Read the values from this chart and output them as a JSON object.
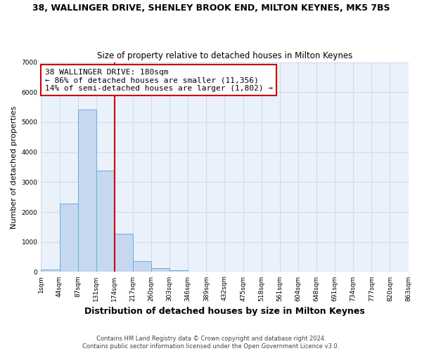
{
  "title1": "38, WALLINGER DRIVE, SHENLEY BROOK END, MILTON KEYNES, MK5 7BS",
  "title2": "Size of property relative to detached houses in Milton Keynes",
  "xlabel": "Distribution of detached houses by size in Milton Keynes",
  "ylabel": "Number of detached properties",
  "bin_edges": [
    "1sqm",
    "44sqm",
    "87sqm",
    "131sqm",
    "174sqm",
    "217sqm",
    "260sqm",
    "303sqm",
    "346sqm",
    "389sqm",
    "432sqm",
    "475sqm",
    "518sqm",
    "561sqm",
    "604sqm",
    "648sqm",
    "691sqm",
    "734sqm",
    "777sqm",
    "820sqm",
    "863sqm"
  ],
  "bar_values": [
    70,
    2280,
    5430,
    3380,
    1280,
    370,
    130,
    50,
    10,
    5,
    0,
    0,
    0,
    0,
    0,
    0,
    0,
    0,
    0,
    0
  ],
  "bar_color": "#c5d8f0",
  "bar_edgecolor": "#6baed6",
  "property_line_bin": 4,
  "ylim": [
    0,
    7000
  ],
  "yticks": [
    0,
    1000,
    2000,
    3000,
    4000,
    5000,
    6000,
    7000
  ],
  "annotation_text": "38 WALLINGER DRIVE: 180sqm\n← 86% of detached houses are smaller (11,356)\n14% of semi-detached houses are larger (1,802) →",
  "footnote": "Contains HM Land Registry data © Crown copyright and database right 2024.\nContains public sector information licensed under the Open Government Licence v3.0.",
  "grid_color": "#ccddf0",
  "background_color": "#eaf1fb"
}
